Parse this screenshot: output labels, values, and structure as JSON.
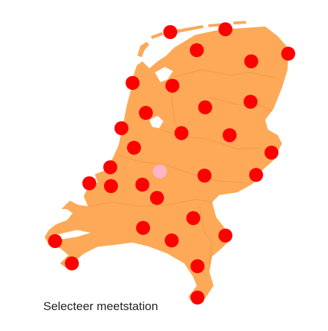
{
  "map": {
    "land_color": "#FDA957",
    "border_color": "#F29A45",
    "station_color": "#FF0000",
    "selected_color": "#FFB3C6",
    "stations": [
      {
        "id": "s1",
        "selected": false
      },
      {
        "id": "s2",
        "selected": false
      },
      {
        "id": "s3",
        "selected": false
      },
      {
        "id": "s4",
        "selected": false
      },
      {
        "id": "s5",
        "selected": false
      },
      {
        "id": "s6",
        "selected": false
      },
      {
        "id": "s7",
        "selected": false
      },
      {
        "id": "s8",
        "selected": false
      },
      {
        "id": "s9",
        "selected": false
      },
      {
        "id": "s10",
        "selected": false
      },
      {
        "id": "s11",
        "selected": false
      },
      {
        "id": "s12",
        "selected": false
      },
      {
        "id": "s13",
        "selected": false
      },
      {
        "id": "s14",
        "selected": false
      },
      {
        "id": "s15",
        "selected": false
      },
      {
        "id": "s16",
        "selected": false
      },
      {
        "id": "s17",
        "selected": false
      },
      {
        "id": "s18",
        "selected": false
      },
      {
        "id": "s19",
        "selected": false
      },
      {
        "id": "s20",
        "selected": false
      },
      {
        "id": "s21",
        "selected": true
      },
      {
        "id": "s22",
        "selected": false
      },
      {
        "id": "s23",
        "selected": false
      },
      {
        "id": "s24",
        "selected": false
      },
      {
        "id": "s25",
        "selected": false
      },
      {
        "id": "s26",
        "selected": false
      },
      {
        "id": "s27",
        "selected": false
      },
      {
        "id": "s28",
        "selected": false
      },
      {
        "id": "s29",
        "selected": false
      },
      {
        "id": "s30",
        "selected": false
      },
      {
        "id": "s31",
        "selected": false
      },
      {
        "id": "s32",
        "selected": false
      },
      {
        "id": "s33",
        "selected": false
      }
    ]
  },
  "caption": "Selecteer meetstation"
}
